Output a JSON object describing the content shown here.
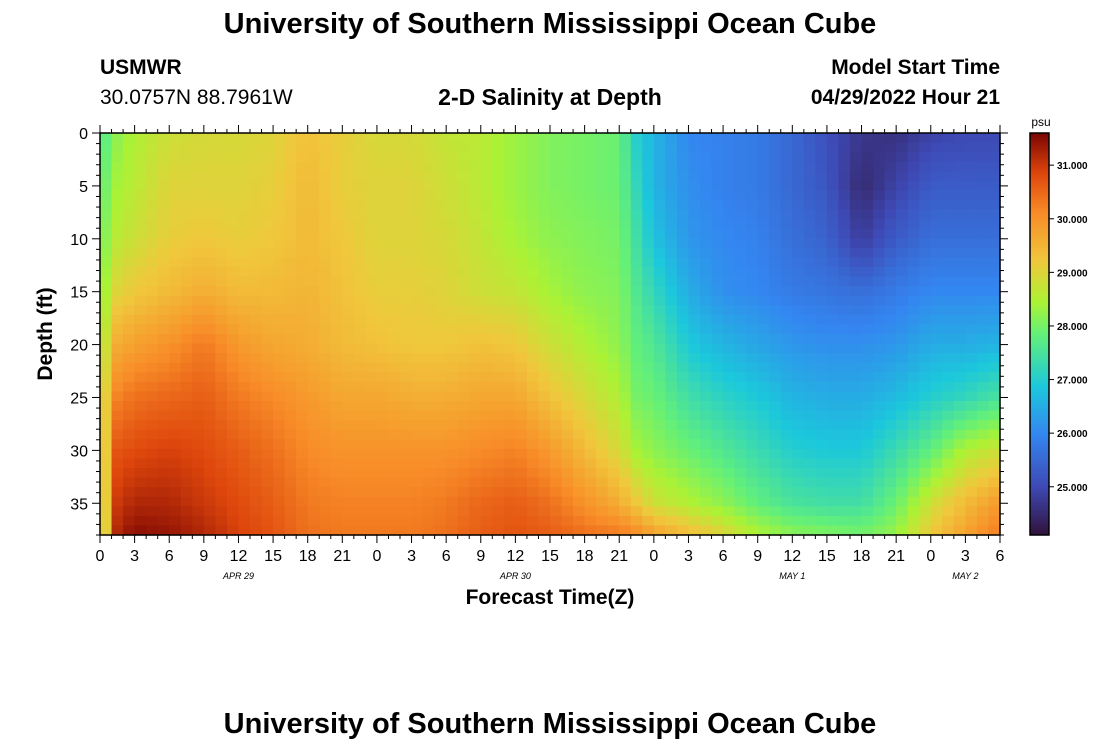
{
  "header": {
    "title": "University of Southern Mississippi Ocean Cube",
    "station": "USMWR",
    "coords": "30.0757N  88.7961W",
    "subtitle": "2-D Salinity at Depth",
    "start_label": "Model Start Time",
    "start_value": "04/29/2022 Hour 21"
  },
  "footer": {
    "title": "University of Southern Mississippi Ocean Cube"
  },
  "chart_data": {
    "type": "heatmap",
    "title": "2-D Salinity at Depth",
    "xlabel": "Forecast Time(Z)",
    "ylabel": "Depth (ft)",
    "x_hours_range": [
      0,
      78
    ],
    "y_range": [
      0,
      38
    ],
    "x_ticks": [
      {
        "h": 0,
        "label": "0"
      },
      {
        "h": 3,
        "label": "3"
      },
      {
        "h": 6,
        "label": "6"
      },
      {
        "h": 9,
        "label": "9"
      },
      {
        "h": 12,
        "label": "12"
      },
      {
        "h": 15,
        "label": "15"
      },
      {
        "h": 18,
        "label": "18"
      },
      {
        "h": 21,
        "label": "21"
      },
      {
        "h": 24,
        "label": "0"
      },
      {
        "h": 27,
        "label": "3"
      },
      {
        "h": 30,
        "label": "6"
      },
      {
        "h": 33,
        "label": "9"
      },
      {
        "h": 36,
        "label": "12"
      },
      {
        "h": 39,
        "label": "15"
      },
      {
        "h": 42,
        "label": "18"
      },
      {
        "h": 45,
        "label": "21"
      },
      {
        "h": 48,
        "label": "0"
      },
      {
        "h": 51,
        "label": "3"
      },
      {
        "h": 54,
        "label": "6"
      },
      {
        "h": 57,
        "label": "9"
      },
      {
        "h": 60,
        "label": "12"
      },
      {
        "h": 63,
        "label": "15"
      },
      {
        "h": 66,
        "label": "18"
      },
      {
        "h": 69,
        "label": "21"
      },
      {
        "h": 72,
        "label": "0"
      },
      {
        "h": 75,
        "label": "3"
      },
      {
        "h": 78,
        "label": "6"
      }
    ],
    "date_labels": [
      {
        "h": 12,
        "label": "APR 29"
      },
      {
        "h": 36,
        "label": "APR 30"
      },
      {
        "h": 60,
        "label": "MAY 1"
      },
      {
        "h": 75,
        "label": "MAY 2"
      }
    ],
    "y_ticks": [
      0,
      5,
      10,
      15,
      20,
      25,
      30,
      35
    ],
    "colorbar": {
      "unit": "psu",
      "range": [
        24.1,
        31.6
      ],
      "ticks": [
        "31.000",
        "30.000",
        "29.000",
        "28.000",
        "27.000",
        "26.000",
        "25.000"
      ],
      "tick_values": [
        31,
        30,
        29,
        28,
        27,
        26,
        25
      ]
    },
    "control_hours": [
      0,
      1.5,
      3,
      6,
      9,
      12,
      15,
      18,
      21,
      24,
      27,
      30,
      33,
      36,
      39,
      42,
      45,
      46.5,
      48,
      51,
      54,
      57,
      60,
      63,
      66,
      69,
      72,
      75,
      78
    ],
    "control_depths": [
      0,
      5,
      10,
      15,
      20,
      25,
      30,
      35,
      38
    ],
    "salinity_grid": [
      [
        27.6,
        27.8,
        28.0,
        28.2,
        28.4,
        28.6,
        28.4,
        28.2,
        28.0
      ],
      [
        28.2,
        28.4,
        28.6,
        29.0,
        29.6,
        30.2,
        30.7,
        31.0,
        31.2
      ],
      [
        28.5,
        28.6,
        28.8,
        29.2,
        29.8,
        30.4,
        30.8,
        31.2,
        31.5
      ],
      [
        28.8,
        29.0,
        29.1,
        29.4,
        30.0,
        30.5,
        30.9,
        31.2,
        31.4
      ],
      [
        28.9,
        29.0,
        29.2,
        29.6,
        30.3,
        30.6,
        30.8,
        31.0,
        31.2
      ],
      [
        28.9,
        29.0,
        29.1,
        29.4,
        29.9,
        30.3,
        30.6,
        30.8,
        30.9
      ],
      [
        29.0,
        29.1,
        29.2,
        29.4,
        29.7,
        30.1,
        30.4,
        30.6,
        30.7
      ],
      [
        29.3,
        29.4,
        29.4,
        29.5,
        29.6,
        29.9,
        30.1,
        30.3,
        30.4
      ],
      [
        29.1,
        29.1,
        29.2,
        29.3,
        29.4,
        29.7,
        30.0,
        30.2,
        30.3
      ],
      [
        28.9,
        29.0,
        29.0,
        29.1,
        29.3,
        29.7,
        30.0,
        30.2,
        30.3
      ],
      [
        28.9,
        29.0,
        29.0,
        29.1,
        29.2,
        29.6,
        30.0,
        30.2,
        30.3
      ],
      [
        28.7,
        28.8,
        28.9,
        29.0,
        29.2,
        29.6,
        30.0,
        30.3,
        30.4
      ],
      [
        28.6,
        28.6,
        28.7,
        28.8,
        29.3,
        29.7,
        30.1,
        30.5,
        30.6
      ],
      [
        28.3,
        28.3,
        28.4,
        28.7,
        29.2,
        29.7,
        30.2,
        30.6,
        30.7
      ],
      [
        28.1,
        28.1,
        28.2,
        28.4,
        28.8,
        29.3,
        29.9,
        30.4,
        30.6
      ],
      [
        28.0,
        28.0,
        28.1,
        28.2,
        28.5,
        28.9,
        29.4,
        30.0,
        30.4
      ],
      [
        27.9,
        27.9,
        28.0,
        28.1,
        28.2,
        28.5,
        28.9,
        29.6,
        30.3
      ],
      [
        27.0,
        27.2,
        27.4,
        27.6,
        27.8,
        28.0,
        28.4,
        29.2,
        30.1
      ],
      [
        26.6,
        26.6,
        26.8,
        27.2,
        27.6,
        27.9,
        28.2,
        28.8,
        29.8
      ],
      [
        26.0,
        26.1,
        26.2,
        26.5,
        26.9,
        27.4,
        27.9,
        28.5,
        29.4
      ],
      [
        25.9,
        25.9,
        26.0,
        26.1,
        26.6,
        27.1,
        27.6,
        28.2,
        29.0
      ],
      [
        25.8,
        25.8,
        25.9,
        26.0,
        26.4,
        26.9,
        27.3,
        27.8,
        28.5
      ],
      [
        25.5,
        25.5,
        25.6,
        25.8,
        26.2,
        26.6,
        27.0,
        27.5,
        28.2
      ],
      [
        25.1,
        25.2,
        25.4,
        25.7,
        26.1,
        26.5,
        26.9,
        27.4,
        28.1
      ],
      [
        24.7,
        24.5,
        24.8,
        25.6,
        26.1,
        26.5,
        26.9,
        27.4,
        28.0
      ],
      [
        24.6,
        24.9,
        25.3,
        25.8,
        26.2,
        26.7,
        27.3,
        27.9,
        28.3
      ],
      [
        24.9,
        25.3,
        25.6,
        26.0,
        26.5,
        27.0,
        27.8,
        28.8,
        29.2
      ],
      [
        25.0,
        25.3,
        25.6,
        26.0,
        26.5,
        27.2,
        28.5,
        29.4,
        29.8
      ],
      [
        25.0,
        25.3,
        25.6,
        26.0,
        26.6,
        27.5,
        28.8,
        29.9,
        30.3
      ]
    ]
  }
}
